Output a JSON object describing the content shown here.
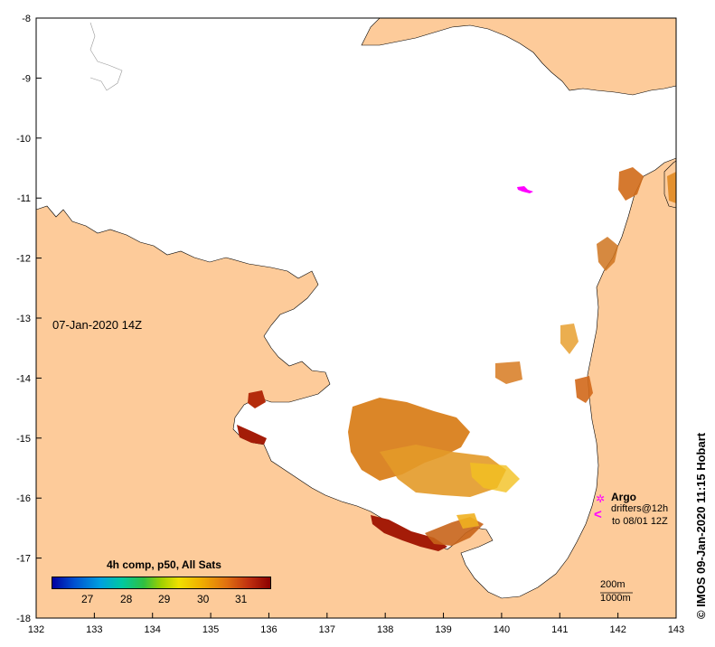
{
  "map": {
    "timestamp": "07-Jan-2020 14Z",
    "x_ticks": [
      "132",
      "133",
      "134",
      "135",
      "136",
      "137",
      "138",
      "139",
      "140",
      "141",
      "142",
      "143"
    ],
    "y_ticks": [
      "-8",
      "-9",
      "-10",
      "-11",
      "-12",
      "-13",
      "-14",
      "-15",
      "-16",
      "-17",
      "-18"
    ],
    "lon_range": [
      132,
      143
    ],
    "lat_range": [
      -18,
      -8
    ]
  },
  "colorbar": {
    "title": "4h comp, p50, All Sats",
    "ticks": [
      "27",
      "28",
      "29",
      "30",
      "31"
    ]
  },
  "legend": {
    "argo_label": "Argo",
    "drifter_label": "drifters@12h",
    "drifter_window": "to 08/01 12Z"
  },
  "scale": {
    "isobath_200": "200m",
    "isobath_1000": "1000m"
  },
  "credit": "© IMOS 09-Jan-2020 11:15 Hobart",
  "colors": {
    "land": "#fdcb9a",
    "ocean": "#ffffff",
    "argo": "#ff00ff",
    "sst_warm": "#c85a10"
  }
}
